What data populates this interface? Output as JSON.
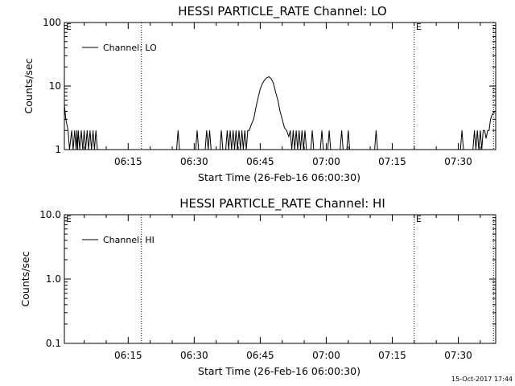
{
  "footer": {
    "timestamp": "15-Oct-2017 17:44"
  },
  "chart_data": [
    {
      "type": "line",
      "title": "HESSI PARTICLE_RATE Channel: LO",
      "xlabel": "Start Time (26-Feb-16 06:00:30)",
      "ylabel": "Counts/sec",
      "yscale": "log",
      "ylim": [
        1,
        100
      ],
      "xlim": [
        "06:00:30",
        "07:38:30"
      ],
      "xticks": [
        "06:15",
        "06:30",
        "06:45",
        "07:00",
        "07:15",
        "07:30"
      ],
      "yticks": [
        "1",
        "10",
        "100"
      ],
      "grid": false,
      "legend_position": "upper-left",
      "vlines": [
        "06:18:00",
        "07:20:00",
        "07:38:00"
      ],
      "vline_labels": [
        {
          "x": "06:00:30",
          "text": "E"
        },
        {
          "x": "07:20:00",
          "text": "E"
        }
      ],
      "series": [
        {
          "name": "Channel: LO",
          "x": [
            "06:00:30",
            "06:00:50",
            "06:01:20",
            "06:01:40",
            "06:02:10",
            "06:02:30",
            "06:02:50",
            "06:03:10",
            "06:03:20",
            "06:03:30",
            "06:03:40",
            "06:04:00",
            "06:04:20",
            "06:04:40",
            "06:05:00",
            "06:05:20",
            "06:05:40",
            "06:06:00",
            "06:06:20",
            "06:06:40",
            "06:07:00",
            "06:07:20",
            "06:07:40",
            "06:08:00",
            "06:08:20",
            "06:26:00",
            "06:26:20",
            "06:26:40",
            "06:30:20",
            "06:30:40",
            "06:31:00",
            "06:32:30",
            "06:32:50",
            "06:33:10",
            "06:33:30",
            "06:33:50",
            "06:35:50",
            "06:36:10",
            "06:36:30",
            "06:37:10",
            "06:37:30",
            "06:37:50",
            "06:38:10",
            "06:38:30",
            "06:38:50",
            "06:39:10",
            "06:39:30",
            "06:39:50",
            "06:40:10",
            "06:40:30",
            "06:40:50",
            "06:41:10",
            "06:41:30",
            "06:41:50",
            "06:42:10",
            "06:42:30",
            "06:43:00",
            "06:43:30",
            "06:44:00",
            "06:44:30",
            "06:45:00",
            "06:45:30",
            "06:46:00",
            "06:46:30",
            "06:47:00",
            "06:47:30",
            "06:48:00",
            "06:48:30",
            "06:49:00",
            "06:49:30",
            "06:50:00",
            "06:50:30",
            "06:51:00",
            "06:51:30",
            "06:51:50",
            "06:52:10",
            "06:52:30",
            "06:52:50",
            "06:53:10",
            "06:53:30",
            "06:53:50",
            "06:54:10",
            "06:54:30",
            "06:54:50",
            "06:55:10",
            "06:55:30",
            "06:56:30",
            "06:56:50",
            "06:57:10",
            "06:58:40",
            "06:59:00",
            "06:59:20",
            "07:00:20",
            "07:00:40",
            "07:01:00",
            "07:03:10",
            "07:03:30",
            "07:03:50",
            "07:04:40",
            "07:05:00",
            "07:05:20",
            "07:11:00",
            "07:11:20",
            "07:11:40",
            "07:30:30",
            "07:30:50",
            "07:31:10",
            "07:33:20",
            "07:33:40",
            "07:34:00",
            "07:34:20",
            "07:34:40",
            "07:35:00",
            "07:35:20",
            "07:35:40",
            "07:36:00",
            "07:36:20",
            "07:36:40",
            "07:37:00",
            "07:37:20",
            "07:37:40",
            "07:38:00",
            "07:38:20"
          ],
          "y": [
            5,
            3,
            2,
            1,
            2,
            1,
            2,
            1,
            2,
            1,
            2,
            1,
            2,
            1,
            2,
            1,
            2,
            1,
            2,
            1,
            2,
            1,
            2,
            1,
            1,
            1,
            2,
            1,
            1,
            2,
            1,
            1,
            2,
            1,
            2,
            1,
            1,
            2,
            1,
            1,
            2,
            1,
            2,
            1,
            2,
            1,
            2,
            1,
            2,
            1,
            2,
            1,
            2,
            1,
            2,
            2,
            2.5,
            3,
            4.5,
            6.5,
            9,
            11,
            12.5,
            13.5,
            14,
            13,
            11,
            8,
            6,
            4,
            3,
            2.2,
            2,
            1.6,
            2,
            1,
            2,
            1,
            2,
            1,
            2,
            1,
            2,
            1,
            2,
            1,
            1,
            2,
            1,
            1,
            2,
            1,
            1,
            2,
            1,
            1,
            2,
            1,
            1,
            2,
            1,
            1,
            2,
            1,
            1,
            2,
            1,
            1,
            2,
            1,
            2,
            1,
            2,
            1,
            2,
            2,
            1.5,
            2,
            2,
            3,
            3.5,
            3.8,
            3.8
          ]
        }
      ]
    },
    {
      "type": "line",
      "title": "HESSI PARTICLE_RATE Channel: HI",
      "xlabel": "Start Time (26-Feb-16 06:00:30)",
      "ylabel": "Counts/sec",
      "yscale": "log",
      "ylim": [
        0.1,
        10
      ],
      "xlim": [
        "06:00:30",
        "07:38:30"
      ],
      "xticks": [
        "06:15",
        "06:30",
        "06:45",
        "07:00",
        "07:15",
        "07:30"
      ],
      "yticks": [
        "0.1",
        "1.0",
        "10.0"
      ],
      "grid": false,
      "legend_position": "upper-left",
      "vlines": [
        "06:18:00",
        "07:20:00",
        "07:38:00"
      ],
      "vline_labels": [
        {
          "x": "06:00:30",
          "text": "E"
        },
        {
          "x": "07:20:00",
          "text": "E"
        }
      ],
      "series": [
        {
          "name": "Channel: HI",
          "x": [],
          "y": []
        }
      ]
    }
  ]
}
